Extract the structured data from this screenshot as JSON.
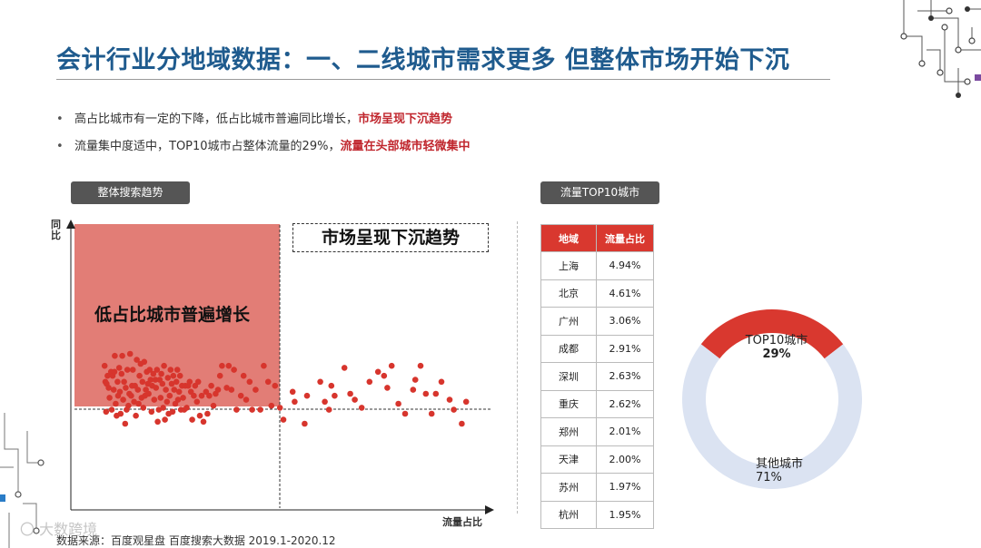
{
  "title": "会计行业分地域数据：一、二线城市需求更多 但整体市场开始下沉",
  "bullets": [
    {
      "marker": "•",
      "text": "高占比城市有一定的下降，低占比城市普遍同比增长，",
      "highlight": "市场呈现下沉趋势"
    },
    {
      "marker": "•",
      "text": "流量集中度适中，TOP10城市占整体流量的29%，",
      "highlight": "流量在头部城市轻微集中"
    }
  ],
  "scatter": {
    "tag": "整体搜索趋势",
    "y_label": "同比",
    "x_label": "流量占比",
    "quadrant_red_label": "低占比城市普遍增长",
    "quadrant_box_label": "市场呈现下沉趋势",
    "colors": {
      "quadrant": "#e27d76",
      "point": "#d7352d"
    }
  },
  "table": {
    "tag": "流量TOP10城市",
    "headers": [
      "地域",
      "流量占比"
    ],
    "rows": [
      [
        "上海",
        "4.94%"
      ],
      [
        "北京",
        "4.61%"
      ],
      [
        "广州",
        "3.06%"
      ],
      [
        "成都",
        "2.91%"
      ],
      [
        "深圳",
        "2.63%"
      ],
      [
        "重庆",
        "2.62%"
      ],
      [
        "郑州",
        "2.01%"
      ],
      [
        "天津",
        "2.00%"
      ],
      [
        "苏州",
        "1.97%"
      ],
      [
        "杭州",
        "1.95%"
      ]
    ],
    "header_color": "#d9382f"
  },
  "chart_data": [
    {
      "type": "scatter",
      "title": "整体搜索趋势",
      "xlabel": "流量占比",
      "ylabel": "同比",
      "annotations": [
        "低占比城市普遍增长",
        "市场呈现下沉趋势"
      ],
      "points": [
        [
          0.6,
          4.4
        ],
        [
          1.0,
          3.6
        ],
        [
          1.4,
          2.1
        ],
        [
          1.7,
          3.5
        ],
        [
          2.2,
          3.9
        ],
        [
          2.8,
          3.3
        ],
        [
          3.3,
          2.8
        ],
        [
          4.1,
          4.1
        ],
        [
          4.5,
          2.2
        ],
        [
          5.0,
          3.9
        ],
        [
          5.6,
          3.2
        ],
        [
          6.0,
          4.1
        ],
        [
          6.2,
          4.9
        ],
        [
          6.7,
          2.5
        ],
        [
          7.2,
          1.9
        ],
        [
          7.7,
          3.6
        ],
        [
          8.0,
          2.9
        ],
        [
          8.6,
          4.3
        ],
        [
          9.0,
          3.1
        ],
        [
          9.4,
          2.0
        ],
        [
          9.9,
          4.0
        ],
        [
          10.3,
          4.9
        ],
        [
          10.8,
          2.7
        ],
        [
          11.3,
          3.6
        ],
        [
          11.9,
          1.5
        ],
        [
          12.2,
          3.3
        ],
        [
          12.7,
          2.2
        ],
        [
          13.1,
          4.2
        ],
        [
          13.7,
          2.4
        ],
        [
          14.2,
          3.0
        ],
        [
          14.6,
          5.0
        ],
        [
          15.2,
          2.9
        ],
        [
          15.7,
          3.4
        ],
        [
          16.1,
          4.2
        ],
        [
          16.8,
          2.6
        ],
        [
          17.3,
          3.4
        ],
        [
          17.8,
          1.9
        ],
        [
          18.3,
          4.7
        ],
        [
          18.9,
          3.2
        ],
        [
          19.3,
          2.5
        ],
        [
          19.8,
          3.9
        ],
        [
          20.4,
          4.5
        ],
        [
          20.9,
          2.8
        ],
        [
          21.4,
          3.6
        ],
        [
          21.9,
          2.3
        ],
        [
          22.4,
          4.6
        ],
        [
          22.8,
          2.9
        ],
        [
          23.3,
          3.2
        ],
        [
          23.8,
          4.1
        ],
        [
          24.4,
          3.5
        ],
        [
          24.8,
          3.0
        ],
        [
          25.4,
          4.2
        ],
        [
          25.9,
          3.7
        ],
        [
          26.4,
          2.1
        ],
        [
          26.8,
          3.4
        ],
        [
          27.4,
          4.0
        ],
        [
          27.9,
          2.7
        ],
        [
          28.5,
          3.7
        ],
        [
          28.9,
          3.3
        ],
        [
          29.4,
          4.2
        ],
        [
          29.8,
          1.6
        ],
        [
          30.4,
          2.2
        ],
        [
          30.9,
          3.7
        ],
        [
          31.4,
          2.8
        ],
        [
          31.8,
          4.0
        ],
        [
          32.4,
          3.5
        ],
        [
          32.8,
          2.3
        ],
        [
          33.3,
          4.4
        ],
        [
          33.8,
          1.7
        ],
        [
          34.3,
          3.2
        ],
        [
          34.9,
          2.6
        ],
        [
          35.4,
          3.8
        ],
        [
          35.8,
          2.0
        ],
        [
          36.4,
          2.9
        ],
        [
          36.9,
          4.2
        ],
        [
          37.5,
          3.5
        ],
        [
          38.0,
          2.1
        ],
        [
          38.4,
          3.9
        ],
        [
          38.9,
          3.2
        ],
        [
          39.5,
          2.5
        ],
        [
          40.1,
          3.6
        ],
        [
          40.6,
          4.2
        ],
        [
          41.0,
          2.7
        ],
        [
          41.6,
          3.1
        ],
        [
          42.1,
          3.9
        ],
        [
          42.6,
          2.2
        ],
        [
          43.2,
          3.4
        ],
        [
          43.8,
          2.8
        ],
        [
          44.4,
          2.2
        ],
        [
          45.0,
          3.4
        ],
        [
          45.8,
          2.3
        ],
        [
          46.6,
          3.4
        ],
        [
          47.4,
          3.6
        ],
        [
          48.1,
          3.1
        ],
        [
          48.8,
          1.7
        ],
        [
          49.7,
          2.9
        ],
        [
          50.4,
          3.4
        ],
        [
          51.4,
          2.6
        ],
        [
          52.1,
          3.6
        ],
        [
          53.0,
          1.9
        ],
        [
          54.0,
          2.9
        ],
        [
          55.0,
          1.6
        ],
        [
          56.4,
          3.1
        ],
        [
          57.2,
          2.0
        ],
        [
          58.2,
          2.9
        ],
        [
          59.3,
          3.4
        ],
        [
          60.5,
          2.4
        ],
        [
          61.7,
          3.0
        ],
        [
          63.0,
          3.2
        ],
        [
          64.1,
          3.9
        ],
        [
          65.2,
          4.4
        ],
        [
          67.8,
          3.3
        ],
        [
          68.9,
          4.4
        ],
        [
          70.4,
          3.2
        ],
        [
          71.8,
          4.2
        ],
        [
          73.2,
          2.2
        ],
        [
          75.6,
          2.9
        ],
        [
          77.1,
          3.9
        ],
        [
          78.5,
          2.7
        ],
        [
          80.4,
          3.6
        ],
        [
          81.8,
          2.2
        ],
        [
          83.7,
          3.2
        ],
        [
          86.3,
          2.2
        ],
        [
          88.2,
          4.4
        ],
        [
          90.6,
          3.6
        ],
        [
          92.4,
          2.4
        ],
        [
          94.4,
          3.4
        ],
        [
          97.1,
          2.3
        ],
        [
          99.0,
          1.7
        ],
        [
          104.1,
          3.1
        ],
        [
          105.2,
          2.6
        ],
        [
          110.7,
          1.5
        ],
        [
          112.0,
          2.9
        ],
        [
          119.3,
          3.6
        ],
        [
          121.8,
          2.6
        ],
        [
          124.1,
          2.2
        ],
        [
          125.4,
          3.4
        ],
        [
          127.2,
          2.9
        ],
        [
          132.6,
          4.3
        ],
        [
          135.8,
          3.0
        ],
        [
          138.3,
          2.7
        ],
        [
          142.1,
          2.3
        ],
        [
          146.4,
          3.6
        ],
        [
          151.1,
          4.1
        ],
        [
          154.4,
          3.9
        ],
        [
          156.2,
          3.3
        ],
        [
          158.6,
          4.4
        ],
        [
          162.3,
          2.5
        ],
        [
          166.0,
          2.0
        ],
        [
          170.4,
          3.2
        ],
        [
          171.6,
          3.7
        ],
        [
          174.5,
          4.4
        ],
        [
          177.4,
          3.0
        ],
        [
          180.6,
          2.0
        ],
        [
          182.9,
          3.0
        ],
        [
          186.0,
          3.6
        ],
        [
          190.5,
          2.7
        ],
        [
          192.8,
          2.2
        ],
        [
          197.2,
          1.5
        ],
        [
          199.6,
          2.6
        ]
      ]
    },
    {
      "type": "pie",
      "title": "",
      "labels": [
        "TOP10城市",
        "其他城市"
      ],
      "values": [
        29,
        71
      ],
      "value_labels": [
        "29%",
        "71%"
      ],
      "colors": [
        "#d9382f",
        "#dbe3f2"
      ]
    }
  ]
}
